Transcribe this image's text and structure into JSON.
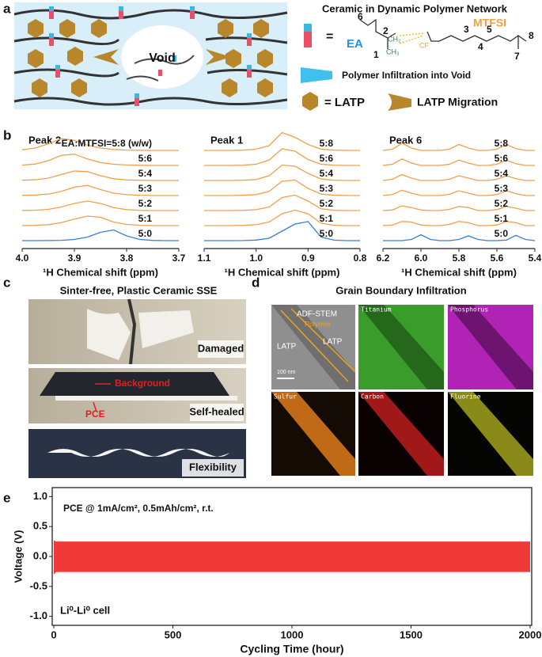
{
  "panel_labels": [
    "a",
    "b",
    "c",
    "d",
    "e"
  ],
  "panel_a": {
    "void": "Void",
    "title": "Ceramic in Dynamic Polymer Network",
    "equals": "=",
    "ea": "EA",
    "mtfsi": "MTFSI",
    "atom_numbers": [
      6,
      2,
      1,
      3,
      4,
      5,
      8,
      7
    ],
    "ch2": "CH₂",
    "ch3": "CH₃",
    "cf": "CF",
    "infiltration": "Polymer Infiltration into Void",
    "latp": "= LATP",
    "migration": "LATP Migration"
  },
  "chart_data": [
    {
      "type": "nmr",
      "title": "Peak 2",
      "xlabel": "¹H Chemical shift (ppm)",
      "xlim": [
        4.0,
        3.7
      ],
      "xticks": [
        {
          "value": 4.0,
          "label": "4.0"
        },
        3.9,
        3.8,
        3.7
      ],
      "x": [
        4.0,
        3.975,
        3.95,
        3.925,
        3.9,
        3.875,
        3.85,
        3.825,
        3.8,
        3.775,
        3.75,
        3.725,
        3.7
      ],
      "series": [
        {
          "name": "EA:MTFSI=5:8 (w/w)",
          "color": "#f0a04b",
          "values": [
            0.05,
            0.2,
            0.55,
            1.0,
            0.85,
            0.45,
            0.2,
            0.08,
            0.03,
            0.01,
            0,
            0,
            0
          ]
        },
        {
          "name": "5:6",
          "color": "#f0a04b",
          "values": [
            0.03,
            0.12,
            0.4,
            0.85,
            0.95,
            0.55,
            0.25,
            0.1,
            0.04,
            0.01,
            0,
            0,
            0
          ]
        },
        {
          "name": "5:4",
          "color": "#f0a04b",
          "values": [
            0.02,
            0.06,
            0.2,
            0.5,
            0.8,
            0.75,
            0.4,
            0.15,
            0.05,
            0.02,
            0,
            0,
            0
          ]
        },
        {
          "name": "5:3",
          "color": "#f0a04b",
          "values": [
            0.01,
            0.04,
            0.12,
            0.35,
            0.7,
            0.85,
            0.5,
            0.2,
            0.07,
            0.02,
            0,
            0,
            0
          ]
        },
        {
          "name": "5:2",
          "color": "#f0a04b",
          "values": [
            0.01,
            0.03,
            0.1,
            0.3,
            0.6,
            0.8,
            0.6,
            0.25,
            0.08,
            0.02,
            0,
            0,
            0
          ]
        },
        {
          "name": "5:1",
          "color": "#f0a04b",
          "values": [
            0,
            0.02,
            0.08,
            0.25,
            0.55,
            0.8,
            0.7,
            0.3,
            0.1,
            0.03,
            0,
            0,
            0
          ]
        },
        {
          "name": "5:0",
          "color": "#3a7fd5",
          "values": [
            0,
            0,
            0.01,
            0.03,
            0.1,
            0.3,
            0.7,
            0.9,
            0.4,
            0.1,
            0.02,
            0,
            0
          ]
        }
      ]
    },
    {
      "type": "nmr",
      "title": "Peak 1",
      "xlabel": "¹H Chemical shift (ppm)",
      "xlim": [
        1.1,
        0.8
      ],
      "xticks": [
        1.1,
        {
          "value": 1.0,
          "label": "1.0"
        },
        0.9,
        0.8
      ],
      "x": [
        1.1,
        1.075,
        1.05,
        1.025,
        1.0,
        0.975,
        0.95,
        0.925,
        0.9,
        0.875,
        0.85,
        0.825,
        0.8
      ],
      "series": [
        {
          "name": "5:8",
          "color": "#f0a04b",
          "values": [
            0,
            0,
            0,
            0.02,
            0.1,
            0.4,
            1.5,
            1.1,
            0.5,
            0.1,
            0.02,
            0,
            0
          ]
        },
        {
          "name": "5:6",
          "color": "#f0a04b",
          "values": [
            0,
            0,
            0,
            0.02,
            0.1,
            0.45,
            1.4,
            1.2,
            0.5,
            0.1,
            0.02,
            0,
            0
          ]
        },
        {
          "name": "5:4",
          "color": "#f0a04b",
          "values": [
            0,
            0,
            0,
            0.02,
            0.08,
            0.4,
            1.3,
            1.2,
            0.6,
            0.12,
            0.02,
            0,
            0
          ]
        },
        {
          "name": "5:3",
          "color": "#f0a04b",
          "values": [
            0,
            0,
            0,
            0.02,
            0.08,
            0.35,
            1.2,
            1.3,
            0.6,
            0.12,
            0.02,
            0,
            0
          ]
        },
        {
          "name": "5:2",
          "color": "#f0a04b",
          "values": [
            0,
            0,
            0,
            0.02,
            0.07,
            0.3,
            1.1,
            1.3,
            0.8,
            0.15,
            0.02,
            0,
            0
          ]
        },
        {
          "name": "5:1",
          "color": "#f0a04b",
          "values": [
            0,
            0,
            0,
            0.02,
            0.07,
            0.3,
            1.0,
            1.3,
            1.0,
            0.2,
            0.03,
            0,
            0
          ]
        },
        {
          "name": "5:0",
          "color": "#3a7fd5",
          "values": [
            0,
            0,
            0,
            0.01,
            0.05,
            0.2,
            0.8,
            1.4,
            1.6,
            0.3,
            0.04,
            0,
            0
          ]
        }
      ]
    },
    {
      "type": "nmr",
      "title": "Peak 6",
      "xlabel": "¹H Chemical shift (ppm)",
      "xlim": [
        6.2,
        5.4
      ],
      "xticks": [
        6.2,
        {
          "value": 6.0,
          "label": "6.0"
        },
        5.8,
        5.6,
        5.4
      ],
      "x": [
        6.2,
        6.15,
        6.1,
        6.05,
        6.0,
        5.95,
        5.9,
        5.85,
        5.8,
        5.75,
        5.7,
        5.65,
        5.6,
        5.55,
        5.5,
        5.45,
        5.4
      ],
      "series": [
        {
          "name": "5:8",
          "color": "#f0a04b",
          "values": [
            0,
            0.1,
            0.6,
            0.2,
            0,
            0,
            0,
            0.1,
            0.5,
            0.2,
            0,
            0,
            0.1,
            0.5,
            0.15,
            0,
            0
          ]
        },
        {
          "name": "5:6",
          "color": "#f0a04b",
          "values": [
            0,
            0.1,
            0.55,
            0.2,
            0,
            0,
            0,
            0.1,
            0.45,
            0.2,
            0,
            0,
            0.1,
            0.45,
            0.15,
            0,
            0
          ]
        },
        {
          "name": "5:4",
          "color": "#f0a04b",
          "values": [
            0,
            0.1,
            0.5,
            0.2,
            0,
            0,
            0,
            0.1,
            0.4,
            0.2,
            0,
            0,
            0.1,
            0.4,
            0.15,
            0,
            0
          ]
        },
        {
          "name": "5:3",
          "color": "#f0a04b",
          "values": [
            0,
            0.08,
            0.45,
            0.2,
            0,
            0,
            0,
            0.1,
            0.4,
            0.2,
            0,
            0,
            0.08,
            0.4,
            0.15,
            0,
            0
          ]
        },
        {
          "name": "5:2",
          "color": "#f0a04b",
          "values": [
            0,
            0.05,
            0.4,
            0.25,
            0.05,
            0,
            0,
            0.1,
            0.35,
            0.25,
            0,
            0,
            0.08,
            0.35,
            0.2,
            0,
            0
          ]
        },
        {
          "name": "5:1",
          "color": "#f0a04b",
          "values": [
            0,
            0.05,
            0.35,
            0.3,
            0.05,
            0,
            0,
            0.1,
            0.35,
            0.25,
            0,
            0,
            0.05,
            0.35,
            0.25,
            0,
            0
          ]
        },
        {
          "name": "5:0",
          "color": "#3a7fd5",
          "values": [
            0,
            0,
            0,
            0.1,
            0.5,
            0.1,
            0,
            0,
            0.1,
            0.4,
            0.1,
            0,
            0,
            0.05,
            0.45,
            0.1,
            0
          ]
        }
      ]
    },
    {
      "type": "band",
      "xlabel": "Cycling Time (hour)",
      "ylabel": "Voltage (V)",
      "annotations": [
        "PCE @ 1mA/cm², 0.5mAh/cm², r.t.",
        "Li⁰-Li⁰ cell"
      ],
      "color": "#f03a3a",
      "xlim": [
        0,
        2000
      ],
      "xticks": [
        0,
        500,
        1000,
        1500,
        2000
      ],
      "ylim": [
        -1.15,
        1.15
      ],
      "yticks": [
        {
          "value": -1.0,
          "label": "-1.0"
        },
        -0.5,
        {
          "value": 0.0,
          "label": "0.0"
        },
        0.5,
        {
          "value": 1.0,
          "label": "1.0"
        }
      ],
      "x": [
        0,
        10,
        2000
      ],
      "upper": [
        0.27,
        0.25,
        0.25
      ],
      "lower": [
        -0.3,
        -0.26,
        -0.26
      ]
    }
  ],
  "panel_c": {
    "title": "Sinter-free, Plastic Ceramic SSE",
    "damaged": "Damaged",
    "self_healed": "Self-healed",
    "background": "Background",
    "pce": "PCE",
    "flexibility": "Flexibility"
  },
  "panel_d": {
    "title": "Grain Boundary Infiltration",
    "adf": "ADF-STEM",
    "polymer": "Polymer",
    "latp": [
      "LATP",
      "LATP"
    ],
    "scale": "100 nm",
    "elements": [
      "Titanium",
      "Phosphorus",
      "Sulfur",
      "Carbon",
      "Fluorine"
    ]
  }
}
